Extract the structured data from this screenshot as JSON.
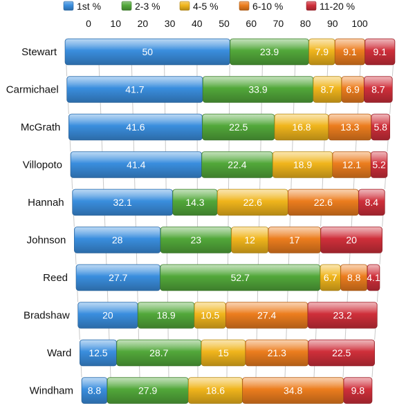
{
  "chart_data": {
    "type": "bar",
    "orientation": "horizontal",
    "stacked": true,
    "categories": [
      "Stewart",
      "Carmichael",
      "McGrath",
      "Villopoto",
      "Hannah",
      "Johnson",
      "Reed",
      "Bradshaw",
      "Ward",
      "Windham"
    ],
    "series": [
      {
        "name": "1st %",
        "color": "#3a8ede",
        "values": [
          50,
          41.7,
          41.6,
          41.4,
          32.1,
          28,
          27.7,
          20,
          12.5,
          8.8
        ]
      },
      {
        "name": "2-3 %",
        "color": "#52a83a",
        "values": [
          23.9,
          33.9,
          22.5,
          22.4,
          14.3,
          23,
          52.7,
          18.9,
          28.7,
          27.9
        ]
      },
      {
        "name": "4-5 %",
        "color": "#f0b51c",
        "values": [
          7.9,
          8.7,
          16.8,
          18.9,
          22.6,
          12,
          6.7,
          10.5,
          15,
          18.6
        ]
      },
      {
        "name": "6-10 %",
        "color": "#ec7d1e",
        "values": [
          9.1,
          6.9,
          13.3,
          12.1,
          22.6,
          17,
          8.8,
          27.4,
          21.3,
          34.8
        ]
      },
      {
        "name": "11-20 %",
        "color": "#cf2f3a",
        "values": [
          9.1,
          8.7,
          5.8,
          5.2,
          8.4,
          20,
          4.1,
          23.2,
          22.5,
          9.8
        ]
      }
    ],
    "value_labels": [
      [
        "50",
        "23.9",
        "7.9",
        "9.1",
        "9.1"
      ],
      [
        "41.7",
        "33.9",
        "8.7",
        "6.9",
        "8.7"
      ],
      [
        "41.6",
        "22.5",
        "16.8",
        "13.3",
        "5.8"
      ],
      [
        "41.4",
        "22.4",
        "18.9",
        "12.1",
        "5.2"
      ],
      [
        "32.1",
        "14.3",
        "22.6",
        "22.6",
        "8.4"
      ],
      [
        "28",
        "23",
        "12",
        "17",
        "20"
      ],
      [
        "27.7",
        "52.7",
        "6.7",
        "8.8",
        "4.1"
      ],
      [
        "20",
        "18.9",
        "10.5",
        "27.4",
        "23.2"
      ],
      [
        "12.5",
        "28.7",
        "15",
        "21.3",
        "22.5"
      ],
      [
        "8.8",
        "27.9",
        "18.6",
        "34.8",
        "9.8"
      ]
    ],
    "ticks": [
      "0",
      "10",
      "20",
      "30",
      "40",
      "50",
      "60",
      "70",
      "80",
      "90",
      "100"
    ],
    "xlim": [
      0,
      100
    ],
    "legend_position": "top",
    "title": "",
    "xlabel": "",
    "ylabel": "",
    "grid": true
  }
}
